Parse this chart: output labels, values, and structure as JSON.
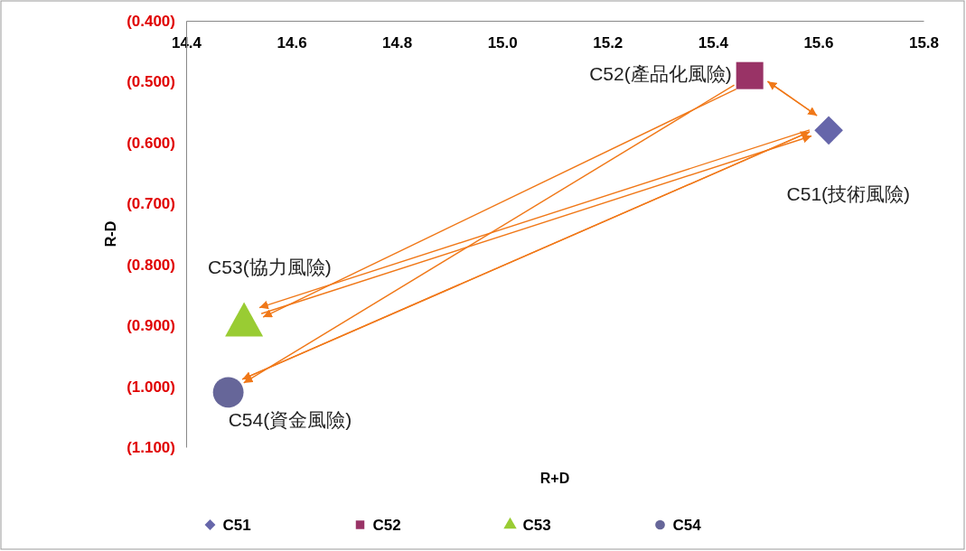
{
  "chart_data": {
    "type": "scatter",
    "xlabel": "R+D",
    "ylabel": "R-D",
    "xlim": [
      14.4,
      15.8
    ],
    "xticks": [
      {
        "value": 14.4,
        "label": "14.4"
      },
      {
        "value": 14.6,
        "label": "14.6"
      },
      {
        "value": 14.8,
        "label": "14.8"
      },
      {
        "value": 15.0,
        "label": "15.0"
      },
      {
        "value": 15.2,
        "label": "15.2"
      },
      {
        "value": 15.4,
        "label": "15.4"
      },
      {
        "value": 15.6,
        "label": "15.6"
      },
      {
        "value": 15.8,
        "label": "15.8"
      }
    ],
    "ylim": [
      -1.1,
      -0.4
    ],
    "yticks": [
      {
        "value": -0.4,
        "label": "(0.400)"
      },
      {
        "value": -0.5,
        "label": "(0.500)"
      },
      {
        "value": -0.6,
        "label": "(0.600)"
      },
      {
        "value": -0.7,
        "label": "(0.700)"
      },
      {
        "value": -0.8,
        "label": "(0.800)"
      },
      {
        "value": -0.9,
        "label": "(0.900)"
      },
      {
        "value": -1.0,
        "label": "(1.000)"
      },
      {
        "value": -1.1,
        "label": "(1.100)"
      }
    ],
    "grid": false,
    "legend": "bottom",
    "series": [
      {
        "name": "C51",
        "color": "#6666aa",
        "marker": "diamond",
        "x": [
          15.62
        ],
        "values": [
          -0.58
        ]
      },
      {
        "name": "C52",
        "color": "#993366",
        "marker": "square",
        "x": [
          15.47
        ],
        "values": [
          -0.49
        ]
      },
      {
        "name": "C53",
        "color": "#99cc33",
        "marker": "triangle",
        "x": [
          14.51
        ],
        "values": [
          -0.89
        ]
      },
      {
        "name": "C54",
        "color": "#666699",
        "marker": "circle",
        "x": [
          14.48
        ],
        "values": [
          -1.01
        ]
      }
    ],
    "annotations": [
      {
        "text": "C51(技術風險)",
        "x": 15.62,
        "y": -0.58
      },
      {
        "text": "C52(產品化風險)",
        "x": 15.47,
        "y": -0.49
      },
      {
        "text": "C53(協力風險)",
        "x": 14.51,
        "y": -0.89
      },
      {
        "text": "C54(資金風險)",
        "x": 14.48,
        "y": -1.01
      }
    ]
  }
}
